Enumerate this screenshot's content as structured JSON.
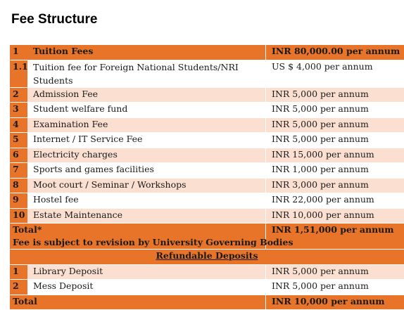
{
  "page": {
    "title": "Fee Structure"
  },
  "fees": [
    {
      "no": "1",
      "item": "Tuition Fees",
      "amount": "INR 80,000.00 per annum"
    },
    {
      "no": "1.1",
      "item": "Tuition fee for Foreign National Students/NRI Students",
      "amount": "US $ 4,000 per annum"
    },
    {
      "no": "2",
      "item": "Admission Fee",
      "amount": "INR 5,000 per annum"
    },
    {
      "no": "3",
      "item": "Student welfare fund",
      "amount": "INR 5,000 per annum"
    },
    {
      "no": "4",
      "item": "Examination Fee",
      "amount": "INR 5,000 per annum"
    },
    {
      "no": "5",
      "item": "Internet / IT Service Fee",
      "amount": "INR 5,000 per annum"
    },
    {
      "no": "6",
      "item": "Electricity charges",
      "amount": "INR 15,000 per annum"
    },
    {
      "no": "7",
      "item": "Sports and games facilities",
      "amount": "INR 1,000 per annum"
    },
    {
      "no": "8",
      "item": "Moot court / Seminar / Workshops",
      "amount": "INR 3,000 per annum"
    },
    {
      "no": "9",
      "item": "Hostel fee",
      "amount": "INR 22,000 per annum"
    },
    {
      "no": "10",
      "item": "Estate Maintenance",
      "amount": "INR 10,000 per annum"
    }
  ],
  "total": {
    "label": "Total*",
    "note": "Fee is subject to revision by University Governing Bodies",
    "amount": "INR 1,51,000 per annum"
  },
  "refundable": {
    "heading": "Refundable Deposits",
    "items": [
      {
        "no": "1",
        "item": "Library Deposit",
        "amount": "INR 5,000 per annum"
      },
      {
        "no": "2",
        "item": "Mess Deposit",
        "amount": "INR 5,000 per annum"
      }
    ],
    "total_label": "Total",
    "total_amount": "INR 10,000 per annum"
  },
  "colors": {
    "header_orange": "#e8742a",
    "row_light": "#fbe0d2",
    "row_white": "#ffffff"
  }
}
